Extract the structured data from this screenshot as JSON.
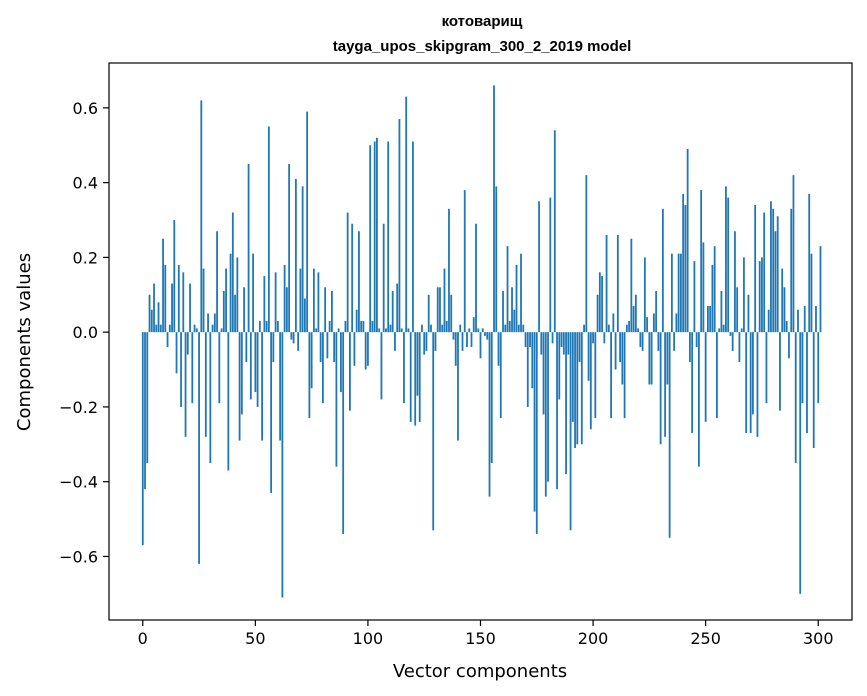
{
  "chart_data": {
    "type": "bar",
    "title": "котоварищ",
    "subtitle": "tayga_upos_skipgram_300_2_2019 model",
    "xlabel": "Vector components",
    "ylabel": "Components values",
    "xlim": [
      -15,
      315
    ],
    "ylim": [
      -0.77,
      0.72
    ],
    "xticks": [
      0,
      50,
      100,
      150,
      200,
      250,
      300
    ],
    "xtick_labels": [
      "0",
      "50",
      "100",
      "150",
      "200",
      "250",
      "300"
    ],
    "yticks": [
      -0.6,
      -0.4,
      -0.2,
      0.0,
      0.2,
      0.4,
      0.6
    ],
    "ytick_labels": [
      "−0.6",
      "−0.4",
      "−0.2",
      "0.0",
      "0.2",
      "0.4",
      "0.6"
    ],
    "bar_color": "#1f77b4",
    "values": [
      -0.57,
      -0.42,
      -0.35,
      0.1,
      0.06,
      0.13,
      0.02,
      0.08,
      0.02,
      0.25,
      0.18,
      -0.04,
      0.02,
      0.13,
      0.3,
      -0.11,
      0.18,
      -0.2,
      0.16,
      -0.28,
      -0.06,
      0.13,
      -0.19,
      0.02,
      0.01,
      -0.62,
      0.62,
      0.17,
      -0.28,
      0.05,
      -0.35,
      0.02,
      0.05,
      0.27,
      -0.19,
      0.01,
      0.11,
      0.17,
      -0.37,
      0.21,
      0.32,
      0.1,
      0.2,
      -0.29,
      -0.22,
      0.12,
      -0.08,
      0.45,
      -0.18,
      0.21,
      -0.16,
      -0.2,
      0.03,
      -0.29,
      0.15,
      0.03,
      0.55,
      -0.43,
      -0.08,
      0.16,
      0.03,
      -0.29,
      -0.71,
      0.18,
      0.12,
      0.45,
      -0.02,
      -0.03,
      0.41,
      -0.05,
      0.17,
      0.39,
      0.09,
      0.59,
      -0.23,
      -0.15,
      0.17,
      0.01,
      0.16,
      -0.08,
      -0.19,
      0.12,
      -0.07,
      0.03,
      0.11,
      -0.08,
      -0.36,
      0.01,
      -0.16,
      -0.54,
      0.03,
      0.32,
      -0.21,
      0.29,
      -0.09,
      0.06,
      0.27,
      0.03,
      0.03,
      -0.1,
      -0.09,
      0.5,
      0.03,
      0.51,
      0.52,
      0.01,
      -0.18,
      0.29,
      0.01,
      0.51,
      0.02,
      0.11,
      -0.05,
      0.13,
      0.57,
      0.01,
      -0.19,
      0.63,
      0.01,
      -0.24,
      0.51,
      -0.25,
      -0.17,
      -0.24,
      0.02,
      -0.06,
      -0.05,
      0.1,
      0.02,
      -0.53,
      -0.05,
      0.12,
      0.12,
      0.02,
      0.17,
      0.03,
      0.33,
      0.1,
      -0.02,
      -0.09,
      -0.29,
      0.02,
      -0.05,
      0.38,
      -0.04,
      0.01,
      -0.04,
      0.04,
      0.29,
      0.01,
      -0.07,
      0.01,
      -0.01,
      -0.02,
      -0.44,
      -0.35,
      0.66,
      0.39,
      -0.09,
      -0.23,
      0.11,
      0.02,
      0.23,
      0.03,
      0.12,
      0.06,
      0.18,
      0.02,
      0.21,
      0.02,
      -0.04,
      -0.2,
      -0.04,
      -0.15,
      -0.48,
      -0.54,
      0.35,
      -0.06,
      -0.22,
      -0.44,
      -0.4,
      0.36,
      -0.03,
      0.54,
      -0.42,
      -0.18,
      -0.04,
      -0.06,
      -0.38,
      -0.06,
      -0.53,
      -0.24,
      -0.31,
      -0.3,
      -0.08,
      -0.3,
      0.02,
      0.42,
      -0.13,
      -0.26,
      -0.03,
      -0.23,
      0.1,
      0.16,
      0.15,
      -0.03,
      0.26,
      0.02,
      -0.23,
      0.05,
      -0.1,
      0.26,
      -0.08,
      -0.14,
      -0.23,
      0.02,
      0.03,
      0.25,
      0.07,
      0.1,
      0.01,
      -0.04,
      -0.05,
      0.2,
      0.04,
      -0.14,
      -0.14,
      0.05,
      0.11,
      -0.05,
      -0.3,
      0.33,
      -0.28,
      -0.14,
      -0.55,
      0.21,
      -0.05,
      0.05,
      0.21,
      0.21,
      0.37,
      0.34,
      0.49,
      -0.08,
      -0.27,
      0.19,
      -0.04,
      -0.36,
      0.38,
      0.24,
      -0.24,
      0.07,
      0.07,
      0.18,
      0.23,
      -0.23,
      0.01,
      0.11,
      0.02,
      0.39,
      0.36,
      -0.01,
      -0.05,
      0.27,
      0.12,
      -0.08,
      0.01,
      0.2,
      -0.27,
      0.1,
      -0.27,
      -0.22,
      0.34,
      -0.28,
      0.19,
      0.2,
      0.32,
      -0.19,
      0.06,
      0.35,
      0.33,
      0.27,
      0.31,
      -0.21,
      0.17,
      0.12,
      0.03,
      -0.07,
      0.33,
      0.42,
      -0.35,
      0.06,
      -0.7,
      -0.19,
      0.07,
      -0.27,
      0.37,
      0.21,
      -0.31,
      0.07,
      -0.19,
      0.23
    ]
  }
}
